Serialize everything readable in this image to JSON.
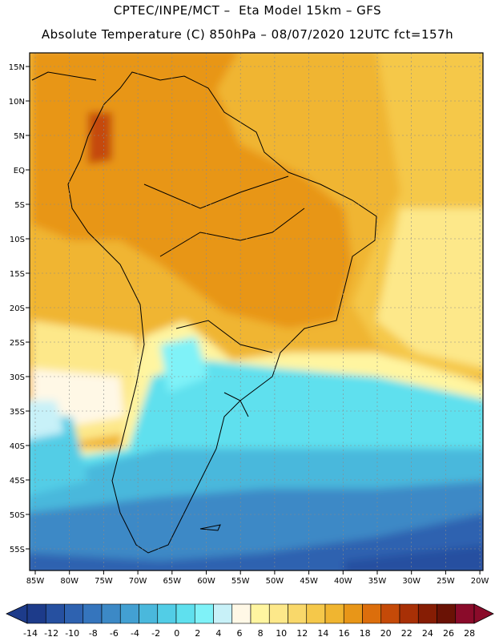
{
  "header": {
    "line1": "CPTEC/INPE/MCT –  Eta Model 15km – GFS",
    "line2": "Absolute Temperature (C) 850hPa – 08/07/2020 12UTC fct=157h"
  },
  "axes": {
    "lat_labels": [
      "15N",
      "10N",
      "5N",
      "EQ",
      "5S",
      "10S",
      "15S",
      "20S",
      "25S",
      "30S",
      "35S",
      "40S",
      "45S",
      "50S",
      "55S"
    ],
    "lon_labels": [
      "85W",
      "80W",
      "75W",
      "70W",
      "65W",
      "60W",
      "55W",
      "50W",
      "45W",
      "40W",
      "35W",
      "30W",
      "25W",
      "20W"
    ]
  },
  "colorbar": {
    "labels": [
      "-14",
      "-12",
      "-10",
      "-8",
      "-6",
      "-4",
      "-2",
      "0",
      "2",
      "4",
      "6",
      "8",
      "10",
      "12",
      "14",
      "16",
      "18",
      "20",
      "22",
      "24",
      "26",
      "28"
    ],
    "colors": [
      "#1d3b8a",
      "#2650a0",
      "#2e62b0",
      "#3575bd",
      "#3c89c6",
      "#43a0d2",
      "#4ab8dc",
      "#52cde6",
      "#5fe0ee",
      "#7ff2f8",
      "#c8f1f8",
      "#fff8e6",
      "#fff5a0",
      "#fde88a",
      "#f9d86a",
      "#f5c84a",
      "#f0b530",
      "#e89618",
      "#dc6e0c",
      "#c54a08",
      "#a83006",
      "#861d04",
      "#6a1205",
      "#8a0b2a"
    ]
  }
}
